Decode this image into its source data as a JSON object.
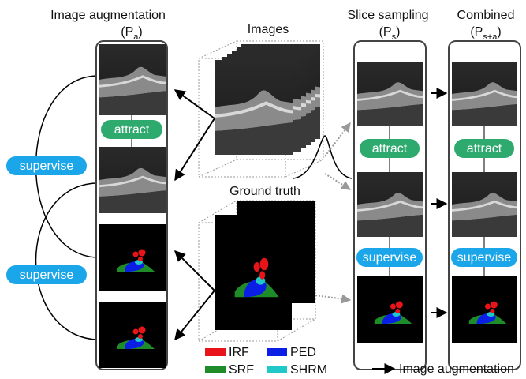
{
  "columns": [
    {
      "title": "Image augmentation",
      "label": {
        "prefix": "(P",
        "sub": "a",
        "suffix": ")"
      }
    },
    {
      "title": "Slice sampling",
      "label": {
        "prefix": "(P",
        "sub": "s",
        "suffix": ")"
      }
    },
    {
      "title": "Combined",
      "label": {
        "prefix": "(P",
        "sub": "s+a",
        "suffix": ")"
      }
    }
  ],
  "stacks": [
    "Images",
    "Ground truth"
  ],
  "pills": {
    "attract": [
      "attract",
      "attract",
      "attract"
    ],
    "supervise": [
      "supervise",
      "supervise",
      "supervise",
      "supervise"
    ]
  },
  "legend": {
    "classes": [
      {
        "name": "IRF",
        "color": "#e8141a"
      },
      {
        "name": "PED",
        "color": "#0a1ee6"
      },
      {
        "name": "SRF",
        "color": "#1e8c28"
      },
      {
        "name": "SHRM",
        "color": "#20c8c8"
      }
    ],
    "arrow": "Image augmentation"
  }
}
